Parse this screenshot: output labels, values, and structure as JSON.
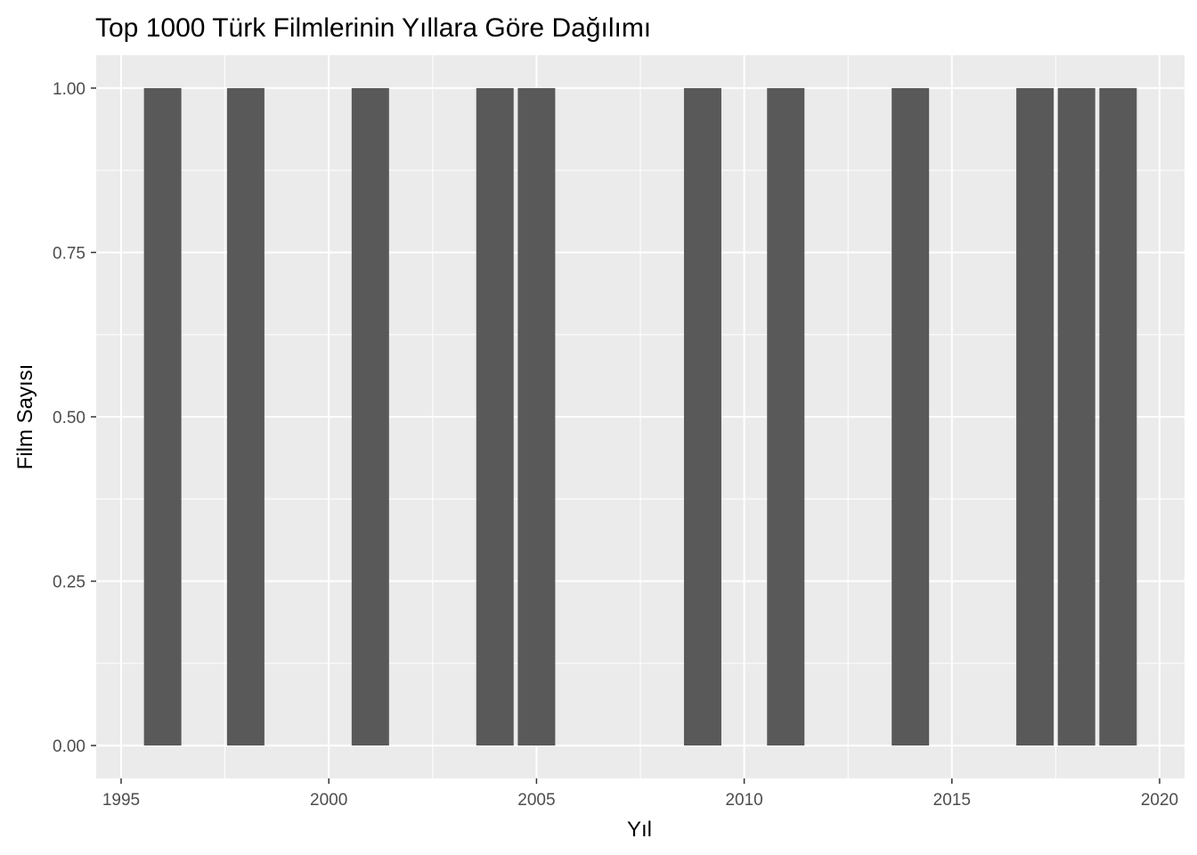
{
  "chart_data": {
    "type": "bar",
    "title": "Top 1000 Türk Filmlerinin Yıllara Göre Dağılımı",
    "xlabel": "Yıl",
    "ylabel": "Film Sayısı",
    "x": [
      1996,
      1998,
      2001,
      2004,
      2005,
      2009,
      2011,
      2014,
      2017,
      2018,
      2019
    ],
    "values": [
      1,
      1,
      1,
      1,
      1,
      1,
      1,
      1,
      1,
      1,
      1
    ],
    "xlim": [
      1994.4,
      2020.6
    ],
    "ylim": [
      -0.05,
      1.05
    ],
    "x_ticks": [
      "1995",
      "2000",
      "2005",
      "2010",
      "2015",
      "2020"
    ],
    "y_ticks": [
      "0.00",
      "0.25",
      "0.50",
      "0.75",
      "1.00"
    ],
    "grid": true,
    "panel_color": "#ebebeb",
    "grid_color": "#ffffff",
    "bar_color": "#595959"
  }
}
